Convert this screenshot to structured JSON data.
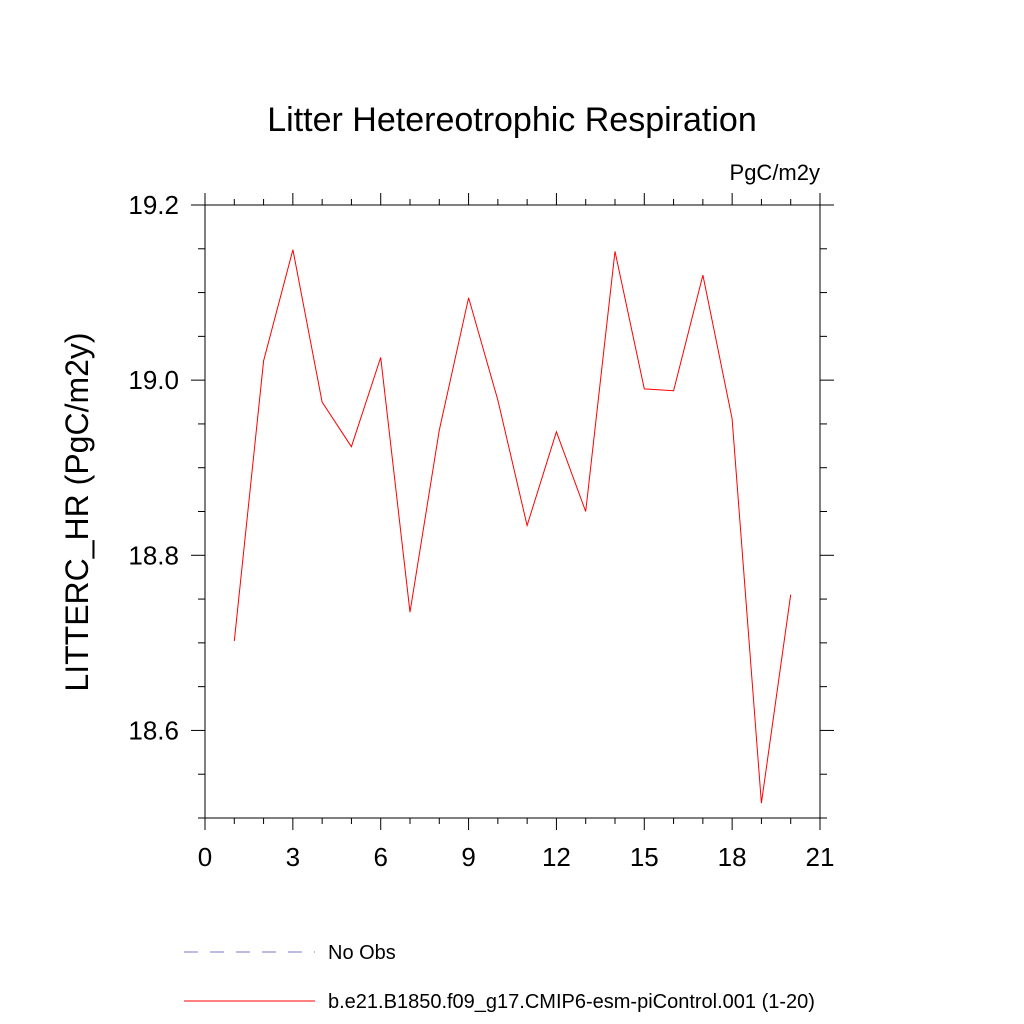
{
  "chart_data": {
    "type": "line",
    "title": "Litter Hetereotrophic Respiration",
    "units_label": "PgC/m2y",
    "ylabel": "LITTERC_HR  (PgC/m2y)",
    "xlabel": "",
    "xlim": [
      0,
      21
    ],
    "ylim": [
      18.5,
      19.2
    ],
    "x_ticks": [
      0,
      3,
      6,
      9,
      12,
      15,
      18,
      21
    ],
    "x_tick_labels": [
      "0",
      "3",
      "6",
      "9",
      "12",
      "15",
      "18",
      "21"
    ],
    "y_ticks": [
      18.6,
      18.8,
      19.0,
      19.2
    ],
    "y_tick_labels": [
      "18.6",
      "18.8",
      "19.0",
      "19.2"
    ],
    "grid": false,
    "legend_placement": "bottom",
    "series": [
      {
        "name": "No Obs",
        "color": "#7777cc",
        "style": "dashed",
        "x": [],
        "y": []
      },
      {
        "name": "b.e21.B1850.f09_g17.CMIP6-esm-piControl.001 (1-20)",
        "color": "#ff0000",
        "style": "solid",
        "x": [
          1,
          2,
          3,
          4,
          5,
          6,
          7,
          8,
          9,
          10,
          11,
          12,
          13,
          14,
          15,
          16,
          17,
          18,
          19,
          20
        ],
        "y": [
          18.702,
          19.022,
          19.149,
          18.975,
          18.924,
          19.026,
          18.735,
          18.943,
          19.094,
          18.977,
          18.834,
          18.941,
          18.85,
          19.147,
          18.99,
          18.988,
          19.12,
          18.956,
          18.517,
          18.755
        ]
      }
    ]
  }
}
